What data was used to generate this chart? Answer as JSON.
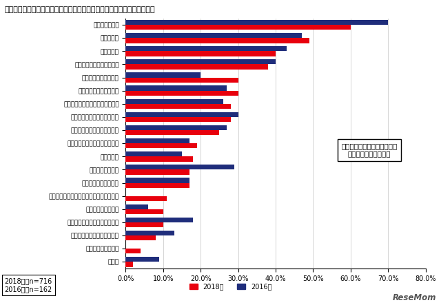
{
  "title": "問３：「専門職大学」の創設において、とくに求めること（複数回答）。",
  "categories": [
    "高度な職業教育",
    "高い就職率",
    "学費の安さ",
    "進路選択の幅が広がること",
    "充実したカリキュラム",
    "資格取得支援制度の充実",
    "既存の大学とは異なるユニークさ",
    "奨学金・学費減免制度の充実",
    "就職先の選択肢が増えること",
    "社会人の学ぶ場所が増えること",
    "学位の授与",
    "地方創生の活発化",
    "技術や技能以外の教育",
    "既存大学の学科からの改組（専門職学科）",
    "専門学校による参入",
    "既存大学・短期大学からの転換",
    "各分野のグローバル人材育成",
    "大学進学者数の増加",
    "その他"
  ],
  "values_2018": [
    60.0,
    49.0,
    40.0,
    38.0,
    30.0,
    30.0,
    28.0,
    28.0,
    25.0,
    19.0,
    18.0,
    17.0,
    17.0,
    11.0,
    10.0,
    10.0,
    8.0,
    4.0,
    2.0
  ],
  "values_2016": [
    70.0,
    47.0,
    43.0,
    40.0,
    20.0,
    27.0,
    26.0,
    30.0,
    27.0,
    17.0,
    15.0,
    29.0,
    17.0,
    0.0,
    6.0,
    18.0,
    13.0,
    0.0,
    9.0
  ],
  "color_2018": "#e8000d",
  "color_2016": "#1f2d7b",
  "legend_2018": "2018年",
  "legend_2016": "2016年",
  "note_2018": "2018年　n=716",
  "note_2016": "2016年　n=162",
  "annotation_line1": "卒業後を意識した取り組みに",
  "annotation_line2": "期待する声が目立つ。",
  "xlim": [
    0,
    80
  ],
  "xticks": [
    0,
    10,
    20,
    30,
    40,
    50,
    60,
    70,
    80
  ],
  "watermark": "ReseMom"
}
